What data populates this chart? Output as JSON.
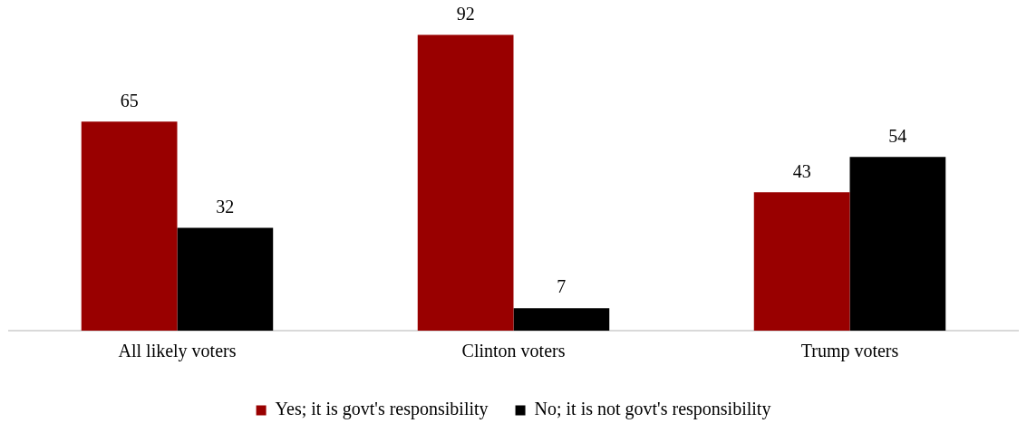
{
  "chart_data": {
    "type": "bar",
    "categories": [
      "All likely voters",
      "Clinton voters",
      "Trump voters"
    ],
    "series": [
      {
        "name": "Yes; it is govt's responsibility",
        "color": "#990000",
        "values": [
          65,
          92,
          43
        ]
      },
      {
        "name": "No; it is not govt's responsibility",
        "color": "#000000",
        "values": [
          32,
          7,
          54
        ]
      }
    ],
    "data_labels": true,
    "legend": "bottom",
    "grid": false
  }
}
